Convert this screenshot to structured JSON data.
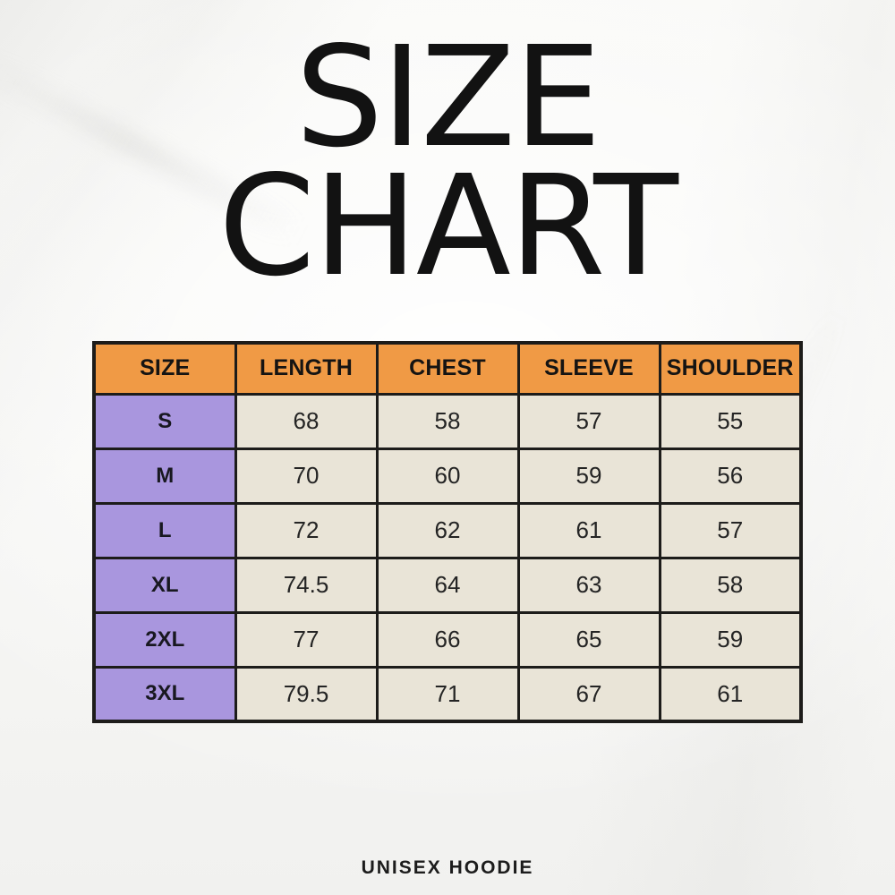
{
  "title": {
    "line1": "SIZE",
    "line2": "CHART"
  },
  "footer": {
    "label": "UNISEX HOODIE"
  },
  "table": {
    "headers": [
      "SIZE",
      "LENGTH",
      "CHEST",
      "SLEEVE",
      "SHOULDER"
    ],
    "rows": [
      {
        "size": "S",
        "values": [
          "68",
          "58",
          "57",
          "55"
        ]
      },
      {
        "size": "M",
        "values": [
          "70",
          "60",
          "59",
          "56"
        ]
      },
      {
        "size": "L",
        "values": [
          "72",
          "62",
          "61",
          "57"
        ]
      },
      {
        "size": "XL",
        "values": [
          "74.5",
          "64",
          "63",
          "58"
        ]
      },
      {
        "size": "2XL",
        "values": [
          "77",
          "66",
          "65",
          "59"
        ]
      },
      {
        "size": "3XL",
        "values": [
          "79.5",
          "71",
          "67",
          "61"
        ]
      }
    ]
  },
  "colors": {
    "header_bg": "#F09A45",
    "size_column_bg": "#A996DE",
    "cell_bg": "#E9E4D7",
    "border": "#1D1C1A",
    "title_text": "#121212"
  },
  "chart_data": {
    "type": "table",
    "title": "SIZE CHART",
    "subtitle": "UNISEX HOODIE",
    "columns": [
      "SIZE",
      "LENGTH",
      "CHEST",
      "SLEEVE",
      "SHOULDER"
    ],
    "rows": [
      [
        "S",
        68,
        58,
        57,
        55
      ],
      [
        "M",
        70,
        60,
        59,
        56
      ],
      [
        "L",
        72,
        62,
        61,
        57
      ],
      [
        "XL",
        74.5,
        64,
        63,
        58
      ],
      [
        "2XL",
        77,
        66,
        65,
        59
      ],
      [
        "3XL",
        79.5,
        71,
        67,
        61
      ]
    ]
  }
}
